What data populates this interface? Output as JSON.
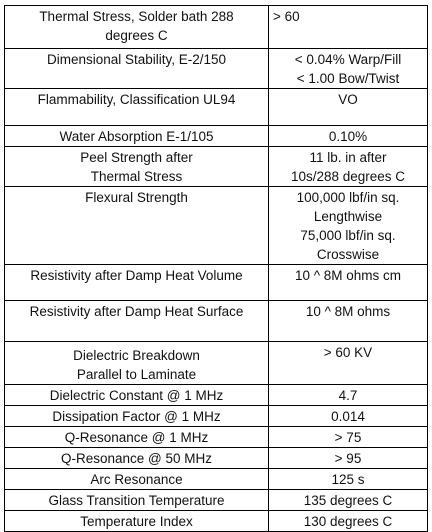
{
  "table": {
    "rows": [
      [
        [
          "Thermal Stress, Solder bath 288",
          "degrees C"
        ],
        [
          "> 60"
        ]
      ],
      [
        [
          "Dimensional Stability, E-2/150"
        ],
        [
          "< 0.04% Warp/Fill",
          "< 1.00 Bow/Twist"
        ]
      ],
      [
        [
          "Flammability, Classification UL94"
        ],
        [
          "VO"
        ]
      ],
      [
        [
          "Water Absorption E-1/105"
        ],
        [
          "0.10%"
        ]
      ],
      [
        [
          "Peel Strength after",
          "Thermal Stress"
        ],
        [
          "11 lb. in after",
          "10s/288 degrees C"
        ]
      ],
      [
        [
          "Flexural Strength"
        ],
        [
          "100,000 lbf/in sq.",
          "Lengthwise",
          "75,000 lbf/in sq.",
          "Crosswise"
        ]
      ],
      [
        [
          "Resistivity after Damp Heat Volume"
        ],
        [
          "10 ^ 8M ohms cm"
        ]
      ],
      [
        [
          "Resistivity after Damp Heat Surface"
        ],
        [
          "10 ^ 8M ohms"
        ]
      ],
      [
        [
          "Dielectric Breakdown",
          "Parallel to Laminate"
        ],
        [
          "> 60 KV"
        ]
      ],
      [
        [
          "Dielectric Constant @ 1 MHz"
        ],
        [
          "4.7"
        ]
      ],
      [
        [
          "Dissipation Factor @ 1 MHz"
        ],
        [
          "0.014"
        ]
      ],
      [
        [
          "Q-Resonance @ 1 MHz"
        ],
        [
          "> 75"
        ]
      ],
      [
        [
          "Q-Resonance @ 50 MHz"
        ],
        [
          "> 95"
        ]
      ],
      [
        [
          "Arc Resonance"
        ],
        [
          "125 s"
        ]
      ],
      [
        [
          "Glass Transition Temperature"
        ],
        [
          "135 degrees C"
        ]
      ],
      [
        [
          "Temperature Index"
        ],
        [
          "130 degrees C"
        ]
      ]
    ]
  }
}
